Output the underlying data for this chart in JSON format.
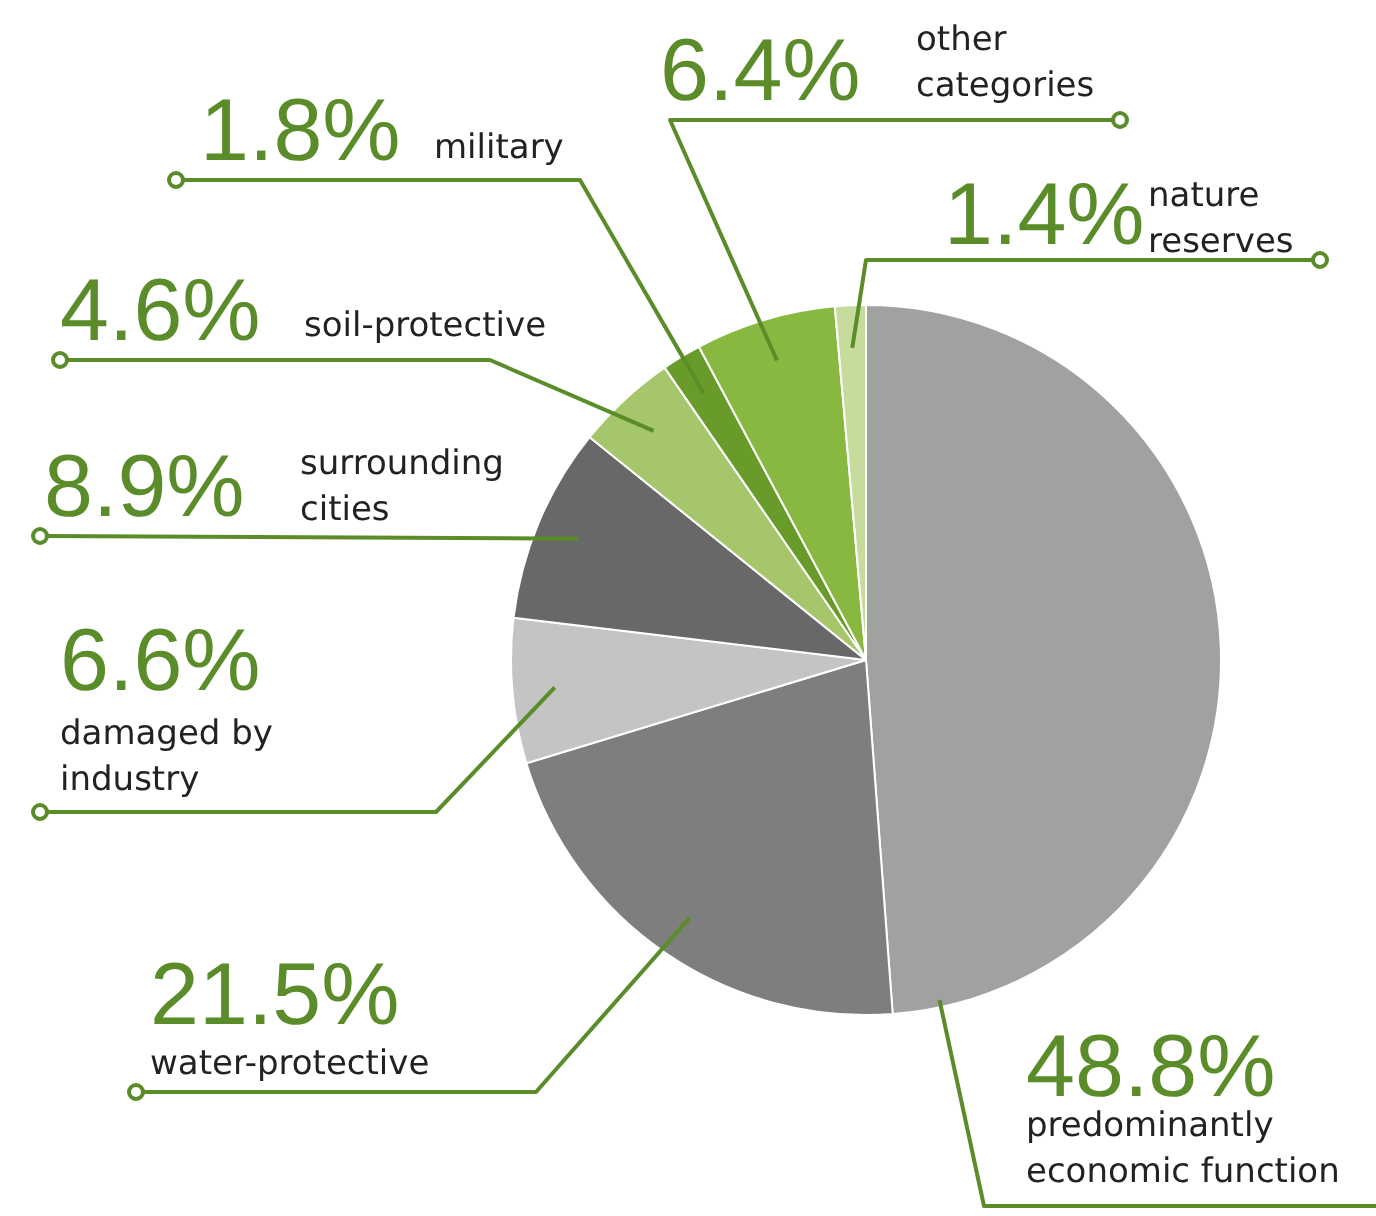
{
  "chart_data": {
    "type": "pie",
    "categories": [
      "predominantly economic function",
      "water-protective",
      "damaged by industry",
      "surrounding cities",
      "soil-protective",
      "military",
      "other categories",
      "nature reserves"
    ],
    "values": [
      48.8,
      21.5,
      6.6,
      8.9,
      4.6,
      1.8,
      6.4,
      1.4
    ],
    "value_labels": [
      "48.8%",
      "21.5%",
      "6.6%",
      "8.9%",
      "4.6%",
      "1.8%",
      "6.4%",
      "1.4%"
    ],
    "colors": [
      "#a0a2a0",
      "#7e7e7e",
      "#c4c4c4",
      "#686868",
      "#a6c66c",
      "#699b2a",
      "#88b840",
      "#c6dc9c"
    ],
    "legend": false
  }
}
